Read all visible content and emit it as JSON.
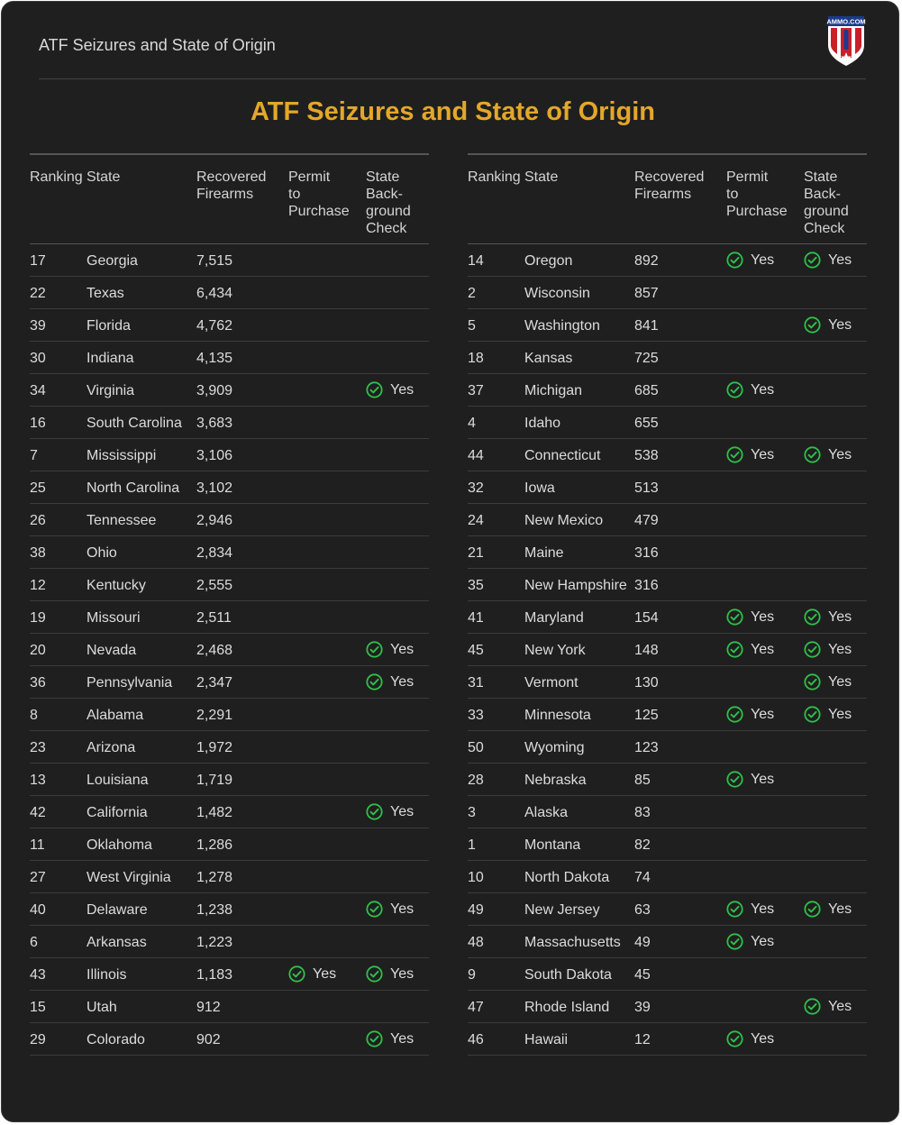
{
  "header": {
    "title": "ATF Seizures and State of Origin",
    "logo_icon": "ammo-com-shield-logo",
    "logo_text": "AMMO.COM"
  },
  "main_title": "ATF Seizures and State of Origin",
  "columns": {
    "ranking": "Ranking",
    "state": "State",
    "recovered": [
      "Recovered",
      "Firearms"
    ],
    "permit": [
      "Permit",
      "to",
      "Purchase"
    ],
    "background": [
      "State",
      "Back-",
      "ground",
      "Check"
    ]
  },
  "yes_label": "Yes",
  "colors": {
    "accent": "#e3a72a",
    "check": "#2fbf4a",
    "background": "#1f1f1f"
  },
  "left_rows": [
    {
      "rank": "17",
      "state": "Georgia",
      "recovered": "7,515",
      "permit": false,
      "bg": false
    },
    {
      "rank": "22",
      "state": "Texas",
      "recovered": "6,434",
      "permit": false,
      "bg": false
    },
    {
      "rank": "39",
      "state": "Florida",
      "recovered": "4,762",
      "permit": false,
      "bg": false
    },
    {
      "rank": "30",
      "state": "Indiana",
      "recovered": "4,135",
      "permit": false,
      "bg": false
    },
    {
      "rank": "34",
      "state": "Virginia",
      "recovered": "3,909",
      "permit": false,
      "bg": true
    },
    {
      "rank": "16",
      "state": "South Carolina",
      "recovered": "3,683",
      "permit": false,
      "bg": false
    },
    {
      "rank": "7",
      "state": "Mississippi",
      "recovered": "3,106",
      "permit": false,
      "bg": false
    },
    {
      "rank": "25",
      "state": "North Carolina",
      "recovered": "3,102",
      "permit": false,
      "bg": false
    },
    {
      "rank": "26",
      "state": "Tennessee",
      "recovered": "2,946",
      "permit": false,
      "bg": false
    },
    {
      "rank": "38",
      "state": "Ohio",
      "recovered": "2,834",
      "permit": false,
      "bg": false
    },
    {
      "rank": "12",
      "state": "Kentucky",
      "recovered": "2,555",
      "permit": false,
      "bg": false
    },
    {
      "rank": "19",
      "state": "Missouri",
      "recovered": "2,511",
      "permit": false,
      "bg": false
    },
    {
      "rank": "20",
      "state": "Nevada",
      "recovered": "2,468",
      "permit": false,
      "bg": true
    },
    {
      "rank": "36",
      "state": "Pennsylvania",
      "recovered": "2,347",
      "permit": false,
      "bg": true
    },
    {
      "rank": "8",
      "state": "Alabama",
      "recovered": "2,291",
      "permit": false,
      "bg": false
    },
    {
      "rank": "23",
      "state": "Arizona",
      "recovered": "1,972",
      "permit": false,
      "bg": false
    },
    {
      "rank": "13",
      "state": "Louisiana",
      "recovered": "1,719",
      "permit": false,
      "bg": false
    },
    {
      "rank": "42",
      "state": "California",
      "recovered": "1,482",
      "permit": false,
      "bg": true
    },
    {
      "rank": "11",
      "state": "Oklahoma",
      "recovered": "1,286",
      "permit": false,
      "bg": false
    },
    {
      "rank": "27",
      "state": "West Virginia",
      "recovered": "1,278",
      "permit": false,
      "bg": false
    },
    {
      "rank": "40",
      "state": "Delaware",
      "recovered": "1,238",
      "permit": false,
      "bg": true
    },
    {
      "rank": "6",
      "state": "Arkansas",
      "recovered": "1,223",
      "permit": false,
      "bg": false
    },
    {
      "rank": "43",
      "state": "Illinois",
      "recovered": "1,183",
      "permit": true,
      "bg": true
    },
    {
      "rank": "15",
      "state": "Utah",
      "recovered": "912",
      "permit": false,
      "bg": false
    },
    {
      "rank": "29",
      "state": "Colorado",
      "recovered": "902",
      "permit": false,
      "bg": true
    }
  ],
  "right_rows": [
    {
      "rank": "14",
      "state": "Oregon",
      "recovered": "892",
      "permit": true,
      "bg": true
    },
    {
      "rank": "2",
      "state": "Wisconsin",
      "recovered": "857",
      "permit": false,
      "bg": false
    },
    {
      "rank": "5",
      "state": "Washington",
      "recovered": "841",
      "permit": false,
      "bg": true
    },
    {
      "rank": "18",
      "state": "Kansas",
      "recovered": "725",
      "permit": false,
      "bg": false
    },
    {
      "rank": "37",
      "state": "Michigan",
      "recovered": "685",
      "permit": true,
      "bg": false
    },
    {
      "rank": "4",
      "state": "Idaho",
      "recovered": "655",
      "permit": false,
      "bg": false
    },
    {
      "rank": "44",
      "state": "Connecticut",
      "recovered": "538",
      "permit": true,
      "bg": true
    },
    {
      "rank": "32",
      "state": "Iowa",
      "recovered": "513",
      "permit": false,
      "bg": false
    },
    {
      "rank": "24",
      "state": "New Mexico",
      "recovered": "479",
      "permit": false,
      "bg": false
    },
    {
      "rank": "21",
      "state": "Maine",
      "recovered": "316",
      "permit": false,
      "bg": false
    },
    {
      "rank": "35",
      "state": "New Hampshire",
      "recovered": "316",
      "permit": false,
      "bg": false
    },
    {
      "rank": "41",
      "state": "Maryland",
      "recovered": "154",
      "permit": true,
      "bg": true
    },
    {
      "rank": "45",
      "state": "New York",
      "recovered": "148",
      "permit": true,
      "bg": true
    },
    {
      "rank": "31",
      "state": "Vermont",
      "recovered": "130",
      "permit": false,
      "bg": true
    },
    {
      "rank": "33",
      "state": "Minnesota",
      "recovered": "125",
      "permit": true,
      "bg": true
    },
    {
      "rank": "50",
      "state": "Wyoming",
      "recovered": "123",
      "permit": false,
      "bg": false
    },
    {
      "rank": "28",
      "state": "Nebraska",
      "recovered": "85",
      "permit": true,
      "bg": false
    },
    {
      "rank": "3",
      "state": "Alaska",
      "recovered": "83",
      "permit": false,
      "bg": false
    },
    {
      "rank": "1",
      "state": "Montana",
      "recovered": "82",
      "permit": false,
      "bg": false
    },
    {
      "rank": "10",
      "state": "North Dakota",
      "recovered": "74",
      "permit": false,
      "bg": false
    },
    {
      "rank": "49",
      "state": "New Jersey",
      "recovered": "63",
      "permit": true,
      "bg": true
    },
    {
      "rank": "48",
      "state": "Massachusetts",
      "recovered": "49",
      "permit": true,
      "bg": false
    },
    {
      "rank": "9",
      "state": "South Dakota",
      "recovered": "45",
      "permit": false,
      "bg": false
    },
    {
      "rank": "47",
      "state": "Rhode Island",
      "recovered": "39",
      "permit": false,
      "bg": true
    },
    {
      "rank": "46",
      "state": "Hawaii",
      "recovered": "12",
      "permit": true,
      "bg": false
    }
  ]
}
